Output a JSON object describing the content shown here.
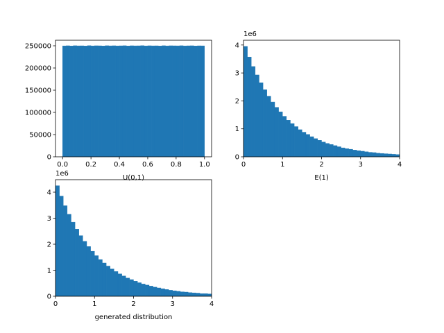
{
  "chart_data": [
    {
      "type": "histogram",
      "xlabel": "U(0,1)",
      "color": "#1f77b4",
      "bins": [
        0,
        0.025,
        0.05,
        0.075,
        0.1,
        0.125,
        0.15,
        0.175,
        0.2,
        0.225,
        0.25,
        0.275,
        0.3,
        0.325,
        0.35,
        0.375,
        0.4,
        0.425,
        0.45,
        0.475,
        0.5,
        0.525,
        0.55,
        0.575,
        0.6,
        0.625,
        0.65,
        0.675,
        0.7,
        0.725,
        0.75,
        0.775,
        0.8,
        0.825,
        0.85,
        0.875,
        0.9,
        0.925,
        0.95,
        0.975,
        1
      ],
      "values": [
        249800,
        250100,
        249700,
        250200,
        249900,
        250000,
        249600,
        250300,
        249800,
        250100,
        250000,
        249700,
        250200,
        249900,
        250100,
        249800,
        250000,
        250200,
        249700,
        250100,
        249900,
        250000,
        250300,
        249800,
        250100,
        249900,
        250000,
        249700,
        250200,
        249800,
        250100,
        250000,
        249900,
        250200,
        249800,
        250000,
        250100,
        249700,
        250000,
        249900
      ],
      "xlim": [
        -0.05,
        1.05
      ],
      "ylim": [
        0,
        262500
      ],
      "xticks": [
        {
          "value": 0,
          "label": "0.0"
        },
        {
          "value": 0.2,
          "label": "0.2"
        },
        {
          "value": 0.4,
          "label": "0.4"
        },
        {
          "value": 0.6,
          "label": "0.6"
        },
        {
          "value": 0.8,
          "label": "0.8"
        },
        {
          "value": 1,
          "label": "1.0"
        }
      ],
      "yticks": [
        0,
        50000,
        100000,
        150000,
        200000,
        250000
      ]
    },
    {
      "type": "histogram",
      "xlabel": "E(1)",
      "offset_text": "1e6",
      "color": "#1f77b4",
      "bins": [
        0,
        0.1,
        0.2,
        0.3,
        0.4,
        0.5,
        0.6,
        0.7,
        0.8,
        0.9,
        1,
        1.1,
        1.2,
        1.3,
        1.4,
        1.5,
        1.6,
        1.7,
        1.8,
        1.9,
        2,
        2.1,
        2.2,
        2.3,
        2.4,
        2.5,
        2.6,
        2.7,
        2.8,
        2.9,
        3,
        3.1,
        3.2,
        3.3,
        3.4,
        3.5,
        3.6,
        3.7,
        3.8,
        3.9,
        4
      ],
      "values": [
        3.95,
        3.57,
        3.23,
        2.93,
        2.65,
        2.4,
        2.17,
        1.96,
        1.77,
        1.61,
        1.45,
        1.31,
        1.19,
        1.08,
        0.97,
        0.88,
        0.8,
        0.72,
        0.65,
        0.59,
        0.53,
        0.48,
        0.44,
        0.4,
        0.36,
        0.32,
        0.29,
        0.27,
        0.24,
        0.22,
        0.2,
        0.18,
        0.16,
        0.15,
        0.13,
        0.12,
        0.11,
        0.1,
        0.09,
        0.08
      ],
      "xlim": [
        0,
        4
      ],
      "ylim": [
        0,
        4.17
      ],
      "xticks": [
        0,
        1,
        2,
        3,
        4
      ],
      "yticks": [
        0,
        1,
        2,
        3,
        4
      ]
    },
    {
      "type": "histogram",
      "xlabel": "generated distribution",
      "offset_text": "1e6",
      "color": "#1f77b4",
      "bins": [
        0,
        0.1,
        0.2,
        0.3,
        0.4,
        0.5,
        0.6,
        0.7,
        0.8,
        0.9,
        1,
        1.1,
        1.2,
        1.3,
        1.4,
        1.5,
        1.6,
        1.7,
        1.8,
        1.9,
        2,
        2.1,
        2.2,
        2.3,
        2.4,
        2.5,
        2.6,
        2.7,
        2.8,
        2.9,
        3,
        3.1,
        3.2,
        3.3,
        3.4,
        3.5,
        3.6,
        3.7,
        3.8,
        3.9,
        4
      ],
      "values": [
        4.25,
        3.85,
        3.48,
        3.15,
        2.85,
        2.58,
        2.33,
        2.11,
        1.91,
        1.73,
        1.56,
        1.41,
        1.28,
        1.16,
        1.05,
        0.95,
        0.86,
        0.78,
        0.7,
        0.64,
        0.58,
        0.52,
        0.47,
        0.43,
        0.39,
        0.35,
        0.32,
        0.29,
        0.26,
        0.23,
        0.21,
        0.19,
        0.17,
        0.16,
        0.14,
        0.13,
        0.12,
        0.1,
        0.1,
        0.09
      ],
      "xlim": [
        0,
        4
      ],
      "ylim": [
        0,
        4.48
      ],
      "xticks": [
        0,
        1,
        2,
        3,
        4
      ],
      "yticks": [
        0,
        1,
        2,
        3,
        4
      ]
    }
  ]
}
